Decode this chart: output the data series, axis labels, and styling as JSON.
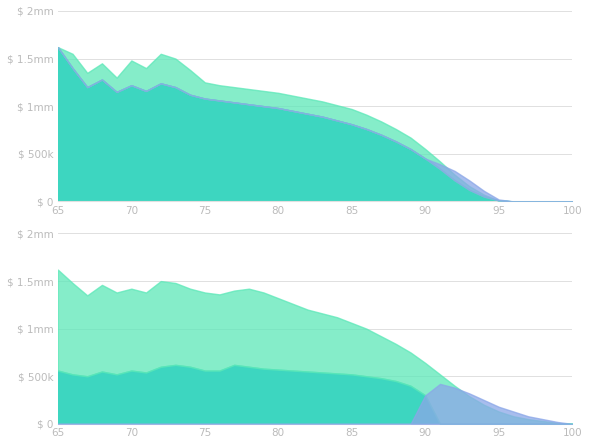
{
  "x": [
    65,
    66,
    67,
    68,
    69,
    70,
    71,
    72,
    73,
    74,
    75,
    76,
    77,
    78,
    79,
    80,
    81,
    82,
    83,
    84,
    85,
    86,
    87,
    88,
    89,
    90,
    91,
    92,
    93,
    94,
    95,
    96,
    97,
    98,
    99,
    100
  ],
  "top1_upper": [
    1.62,
    1.55,
    1.35,
    1.45,
    1.3,
    1.48,
    1.4,
    1.55,
    1.5,
    1.38,
    1.25,
    1.22,
    1.2,
    1.18,
    1.16,
    1.14,
    1.11,
    1.08,
    1.05,
    1.01,
    0.97,
    0.91,
    0.84,
    0.76,
    0.67,
    0.55,
    0.42,
    0.28,
    0.16,
    0.07,
    0.01,
    0.0,
    0.0,
    0.0,
    0.0,
    0.0
  ],
  "top1_base": [
    1.62,
    1.4,
    1.2,
    1.28,
    1.15,
    1.22,
    1.16,
    1.24,
    1.2,
    1.12,
    1.08,
    1.06,
    1.04,
    1.02,
    1.0,
    0.98,
    0.95,
    0.92,
    0.89,
    0.85,
    0.81,
    0.76,
    0.7,
    0.63,
    0.55,
    0.45,
    0.34,
    0.22,
    0.12,
    0.05,
    0.01,
    0.0,
    0.0,
    0.0,
    0.0,
    0.0
  ],
  "top1_spia": [
    0.0,
    0.0,
    0.0,
    0.0,
    0.0,
    0.0,
    0.0,
    0.0,
    0.0,
    0.0,
    0.0,
    0.0,
    0.0,
    0.0,
    0.0,
    0.0,
    0.0,
    0.0,
    0.0,
    0.0,
    0.0,
    0.0,
    0.0,
    0.0,
    0.0,
    0.0,
    0.05,
    0.1,
    0.1,
    0.06,
    0.01,
    0.0,
    0.0,
    0.0,
    0.0,
    0.0
  ],
  "top2_upper": [
    1.62,
    1.48,
    1.35,
    1.46,
    1.38,
    1.42,
    1.38,
    1.5,
    1.48,
    1.42,
    1.38,
    1.36,
    1.4,
    1.42,
    1.38,
    1.32,
    1.26,
    1.2,
    1.16,
    1.12,
    1.06,
    1.0,
    0.92,
    0.84,
    0.75,
    0.64,
    0.52,
    0.4,
    0.29,
    0.2,
    0.13,
    0.08,
    0.05,
    0.03,
    0.01,
    0.0
  ],
  "top2_base": [
    0.56,
    0.52,
    0.5,
    0.55,
    0.52,
    0.56,
    0.54,
    0.6,
    0.62,
    0.6,
    0.56,
    0.56,
    0.62,
    0.6,
    0.58,
    0.57,
    0.56,
    0.55,
    0.54,
    0.53,
    0.52,
    0.5,
    0.48,
    0.45,
    0.4,
    0.3,
    0.0,
    0.0,
    0.0,
    0.0,
    0.0,
    0.0,
    0.0,
    0.0,
    0.0,
    0.0
  ],
  "top2_spia": [
    0.0,
    0.0,
    0.0,
    0.0,
    0.0,
    0.0,
    0.0,
    0.0,
    0.0,
    0.0,
    0.0,
    0.0,
    0.0,
    0.0,
    0.0,
    0.0,
    0.0,
    0.0,
    0.0,
    0.0,
    0.0,
    0.0,
    0.0,
    0.0,
    0.0,
    0.3,
    0.42,
    0.38,
    0.32,
    0.25,
    0.18,
    0.13,
    0.08,
    0.05,
    0.02,
    0.0
  ],
  "color_teal_dark": "#3dd6c0",
  "color_teal_light": "#5ce8b8",
  "color_blue_spia": "#8ba7e8",
  "color_background": "#ffffff",
  "color_grid": "#e0e0e0",
  "color_text": "#bbbbbb",
  "ytick_labels": [
    "$ 0",
    "$ 500k",
    "$ 1mm",
    "$ 1.5mm",
    "$ 2mm"
  ],
  "ytick_values": [
    0,
    0.5,
    1.0,
    1.5,
    2.0
  ],
  "xtick_values": [
    65,
    70,
    75,
    80,
    85,
    90,
    95,
    100
  ],
  "ylim": [
    0,
    2.0
  ],
  "xlim": [
    65,
    100
  ]
}
